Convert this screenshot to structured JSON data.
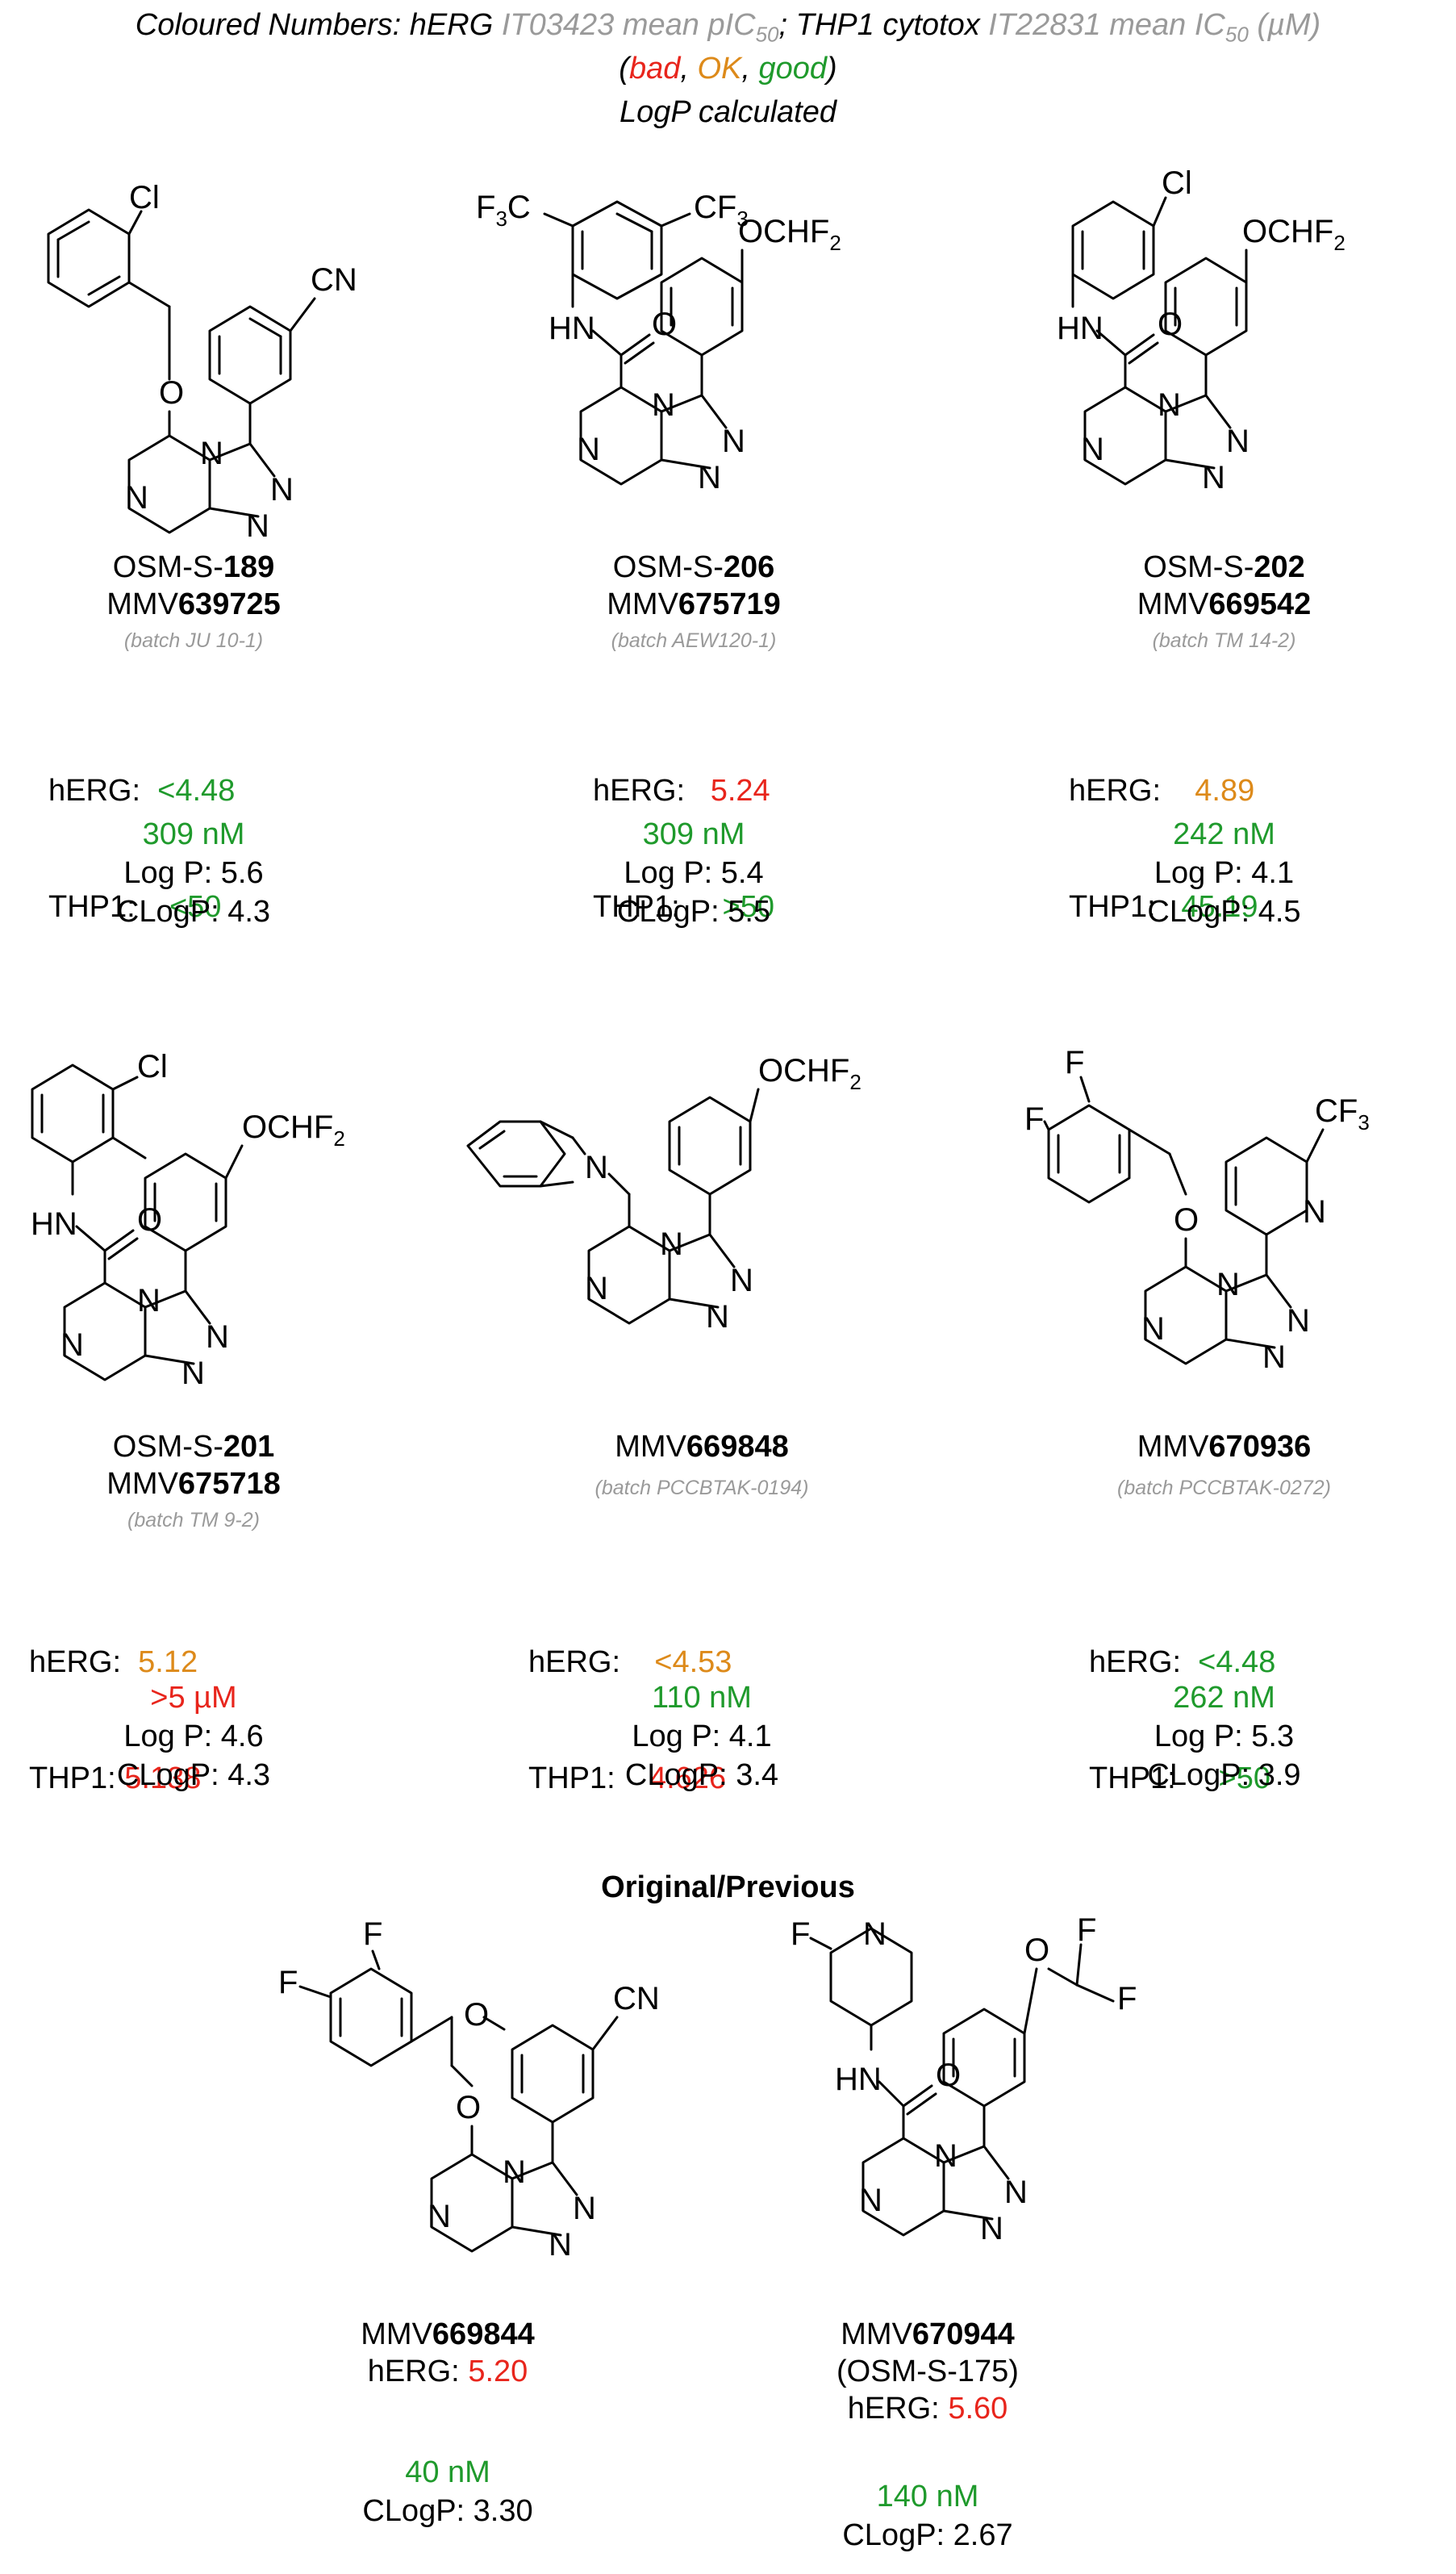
{
  "header": {
    "line1_prefix": "Coloured Numbers: hERG ",
    "line1_herg_assay": "IT03423 mean pIC",
    "sub50": "50",
    "line1_mid": "; THP1 cytotox ",
    "line1_thp_assay": "IT22831 mean IC",
    "line1_unit": " (µM)",
    "legend_open": "(",
    "legend_bad": "bad",
    "legend_sep1": ", ",
    "legend_ok": "OK",
    "legend_sep2": ", ",
    "legend_good": "good",
    "legend_close": ")",
    "line3": "LogP calculated"
  },
  "colors": {
    "bad": "#e8251c",
    "ok": "#dd8a1a",
    "good": "#1f9a2c",
    "batch": "#9a9a9a"
  },
  "compounds": [
    {
      "osm_prefix": "OSM-S-",
      "osm_num": "189",
      "mmv_prefix": "MMV",
      "mmv_num": "639725",
      "batch": "(batch JU 10-1)",
      "herg_label": "hERG:",
      "herg_value": "<4.48",
      "herg_rating": "good",
      "thp_label": "THP1:",
      "thp_value": "<50",
      "thp_rating": "good",
      "potency": "309 nM",
      "potency_rating": "good",
      "logp": "Log P: 5.6",
      "clogp": "CLogP: 4.3",
      "substituent_labels": [
        "Cl",
        "CN",
        "O",
        "N",
        "N",
        "N",
        "N"
      ]
    },
    {
      "osm_prefix": "OSM-S-",
      "osm_num": "206",
      "mmv_prefix": "MMV",
      "mmv_num": "675719",
      "batch": "(batch AEW120-1)",
      "herg_label": "hERG:",
      "herg_value": "5.24",
      "herg_rating": "bad",
      "thp_label": "THP1:",
      "thp_value": ">50",
      "thp_rating": "good",
      "potency": "309 nM",
      "potency_rating": "good",
      "logp": "Log P: 5.4",
      "clogp": "CLogP: 5.5",
      "substituent_labels": [
        "F3C",
        "CF3",
        "OCHF2",
        "HN",
        "O",
        "N",
        "N",
        "N",
        "N"
      ]
    },
    {
      "osm_prefix": "OSM-S-",
      "osm_num": "202",
      "mmv_prefix": "MMV",
      "mmv_num": "669542",
      "batch": "(batch TM 14-2)",
      "herg_label": "hERG:",
      "herg_value": "4.89",
      "herg_rating": "ok",
      "thp_label": "THP1:",
      "thp_value": "45.19",
      "thp_rating": "good",
      "potency": "242 nM",
      "potency_rating": "good",
      "logp": "Log P: 4.1",
      "clogp": "CLogP: 4.5",
      "substituent_labels": [
        "Cl",
        "OCHF2",
        "HN",
        "O",
        "N",
        "N",
        "N",
        "N"
      ]
    },
    {
      "osm_prefix": "OSM-S-",
      "osm_num": "201",
      "mmv_prefix": "MMV",
      "mmv_num": "675718",
      "batch": "(batch TM 9-2)",
      "herg_label": "hERG:",
      "herg_value": "5.12",
      "herg_rating": "ok",
      "thp_label": "THP1:",
      "thp_value": "5.138",
      "thp_rating": "bad",
      "potency": ">5 µM",
      "potency_rating": "bad",
      "logp": "Log P: 4.6",
      "clogp": "CLogP: 4.3",
      "substituent_labels": [
        "Cl",
        "OCHF2",
        "HN",
        "O",
        "N",
        "N",
        "N",
        "N"
      ]
    },
    {
      "osm_prefix": "",
      "osm_num": "",
      "mmv_prefix": "MMV",
      "mmv_num": "669848",
      "batch": "(batch PCCBTAK-0194)",
      "herg_label": "hERG:",
      "herg_value": "<4.53",
      "herg_rating": "ok",
      "thp_label": "THP1:",
      "thp_value": "4.626",
      "thp_rating": "bad",
      "potency": "110 nM",
      "potency_rating": "good",
      "logp": "Log P: 4.1",
      "clogp": "CLogP: 3.4",
      "substituent_labels": [
        "OCHF2",
        "N",
        "N",
        "N",
        "N",
        "N"
      ]
    },
    {
      "osm_prefix": "",
      "osm_num": "",
      "mmv_prefix": "MMV",
      "mmv_num": "670936",
      "batch": "(batch PCCBTAK-0272)",
      "herg_label": "hERG:",
      "herg_value": "<4.48",
      "herg_rating": "good",
      "thp_label": "THP1:",
      "thp_value": ">50",
      "thp_rating": "good",
      "potency": "262 nM",
      "potency_rating": "good",
      "logp": "Log P: 5.3",
      "clogp": "CLogP: 3.9",
      "substituent_labels": [
        "F",
        "F",
        "CF3",
        "N",
        "O",
        "N",
        "N",
        "N",
        "N"
      ]
    }
  ],
  "section_title": "Original/Previous",
  "previous": [
    {
      "mmv_prefix": "MMV",
      "mmv_num": "669844",
      "extra": "",
      "herg_label": "hERG: ",
      "herg_value": "5.20",
      "herg_rating": "bad",
      "potency": "40 nM",
      "potency_rating": "good",
      "clogp": "CLogP: 3.30",
      "substituent_labels": [
        "F",
        "F",
        "O",
        "CN",
        "O",
        "N",
        "N",
        "N",
        "N"
      ]
    },
    {
      "mmv_prefix": "MMV",
      "mmv_num": "670944",
      "extra": "(OSM-S-175)",
      "herg_label": "hERG: ",
      "herg_value": "5.60",
      "herg_rating": "bad",
      "potency": "140 nM",
      "potency_rating": "good",
      "clogp": "CLogP: 2.67",
      "substituent_labels": [
        "F",
        "N",
        "O",
        "F",
        "F",
        "HN",
        "O",
        "N",
        "N",
        "N",
        "N"
      ]
    }
  ]
}
